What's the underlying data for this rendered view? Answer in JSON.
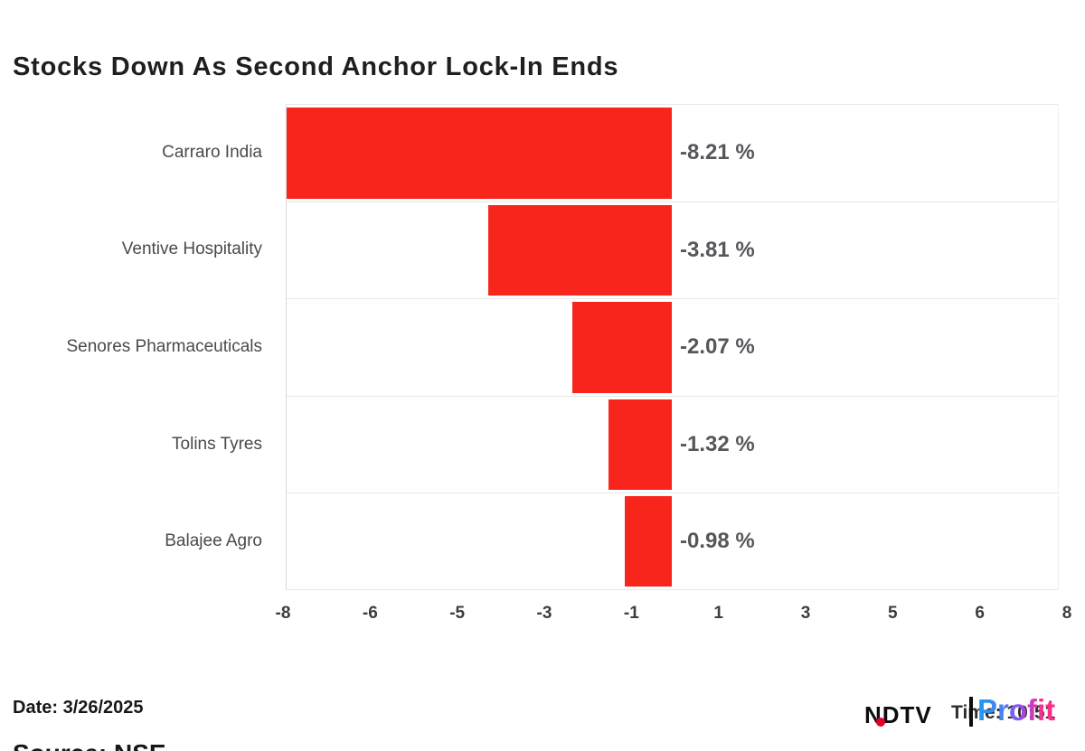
{
  "header": {
    "title": "Stocks Down As Second Anchor Lock-In Ends"
  },
  "chart_data": {
    "type": "bar",
    "orientation": "horizontal",
    "title": "Stocks Down As Second Anchor Lock-In Ends",
    "categories": [
      "Carraro India",
      "Ventive Hospitality",
      "Senores Pharmaceuticals",
      "Tolins Tyres",
      "Balajee Agro"
    ],
    "values": [
      -8.21,
      -3.81,
      -2.07,
      -1.32,
      -0.98
    ],
    "value_labels": [
      "-8.21 %",
      "-3.81 %",
      "-2.07 %",
      "-1.32 %",
      "-0.98 %"
    ],
    "unit": "%",
    "xlim": [
      -8,
      8
    ],
    "x_tick_labels": [
      "-8",
      "-6",
      "-5",
      "-3",
      "-1",
      "1",
      "3",
      "5",
      "6",
      "8"
    ],
    "grid": "horizontal row separators only, light gray",
    "legend": null,
    "bar_color": "#f8251d"
  },
  "footer": {
    "date_label": "Date: 3/26/2025",
    "source_label": "Source: NSE"
  },
  "logo": {
    "ndtv_text": "NDTV",
    "profit_text": "Profit",
    "timestamp_text": "Time: 10:51",
    "dot_color": "#e4002b"
  }
}
